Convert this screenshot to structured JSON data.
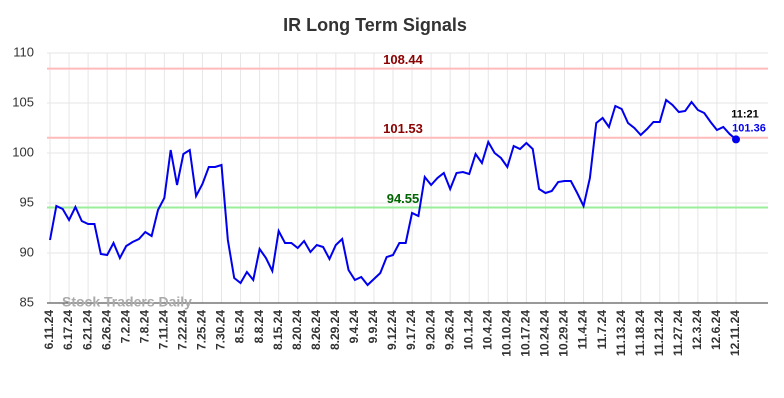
{
  "chart_data": {
    "type": "line",
    "title": "IR Long Term Signals",
    "categories": [
      "6.11.24",
      null,
      null,
      "6.17.24",
      null,
      null,
      "6.21.24",
      null,
      null,
      "6.26.24",
      null,
      null,
      "7.2.24",
      null,
      null,
      "7.8.24",
      null,
      null,
      "7.11.24",
      null,
      null,
      "7.22.24",
      null,
      null,
      "7.25.24",
      null,
      null,
      "7.30.24",
      null,
      null,
      "8.5.24",
      null,
      null,
      "8.8.24",
      null,
      null,
      "8.15.24",
      null,
      null,
      "8.20.24",
      null,
      null,
      "8.26.24",
      null,
      null,
      "8.29.24",
      null,
      null,
      "9.4.24",
      null,
      null,
      "9.9.24",
      null,
      null,
      "9.12.24",
      null,
      null,
      "9.17.24",
      null,
      null,
      "9.20.24",
      null,
      null,
      "9.26.24",
      null,
      null,
      "10.1.24",
      null,
      null,
      "10.4.24",
      null,
      null,
      "10.10.24",
      null,
      null,
      "10.17.24",
      null,
      null,
      "10.24.24",
      null,
      null,
      "10.29.24",
      null,
      null,
      "11.4.24",
      null,
      null,
      "11.7.24",
      null,
      null,
      "11.13.24",
      null,
      null,
      "11.18.24",
      null,
      null,
      "11.21.24",
      null,
      null,
      "11.27.24",
      null,
      null,
      "12.3.24",
      null,
      null,
      "12.6.24",
      null,
      null,
      "12.11.24"
    ],
    "series": [
      {
        "name": "IR",
        "color": "#0000ee",
        "values": [
          91.3,
          94.7,
          94.4,
          93.3,
          94.6,
          93.2,
          92.9,
          92.9,
          89.9,
          89.8,
          91.0,
          89.5,
          90.7,
          91.1,
          91.4,
          92.1,
          91.7,
          94.3,
          95.5,
          100.3,
          96.8,
          99.9,
          100.3,
          95.7,
          96.9,
          98.6,
          98.6,
          98.8,
          91.3,
          87.5,
          87.0,
          88.1,
          87.3,
          90.4,
          89.5,
          88.2,
          92.2,
          91.0,
          91.0,
          90.5,
          91.2,
          90.1,
          90.8,
          90.6,
          89.4,
          90.8,
          91.4,
          88.3,
          87.3,
          87.6,
          86.8,
          87.4,
          88.0,
          89.6,
          89.8,
          91.0,
          91.0,
          94.0,
          93.7,
          97.6,
          96.8,
          97.5,
          98.0,
          96.4,
          98.0,
          98.1,
          97.9,
          99.9,
          99.0,
          101.1,
          100.0,
          99.5,
          98.6,
          100.7,
          100.4,
          101.0,
          100.4,
          96.4,
          96.0,
          96.2,
          97.1,
          97.2,
          97.2,
          96.0,
          94.7,
          97.5,
          103.0,
          103.5,
          102.6,
          104.7,
          104.4,
          103.0,
          102.5,
          101.8,
          102.4,
          103.1,
          103.1,
          105.3,
          104.8,
          104.1,
          104.2,
          105.1,
          104.3,
          104.0,
          103.1,
          102.3,
          102.6,
          101.9,
          101.36
        ]
      }
    ],
    "ylim": [
      85,
      110
    ],
    "yticks": [
      85,
      90,
      95,
      100,
      105,
      110
    ],
    "grid": true,
    "hlines": [
      {
        "value": 108.44,
        "color": "#ffbbbb",
        "label_color": "#8b0000"
      },
      {
        "value": 101.53,
        "color": "#ffbbbb",
        "label_color": "#8b0000"
      },
      {
        "value": 94.55,
        "color": "#99ee99",
        "label_color": "#006400"
      }
    ],
    "last_time": "11:21",
    "watermark": "Stock Traders Daily"
  }
}
